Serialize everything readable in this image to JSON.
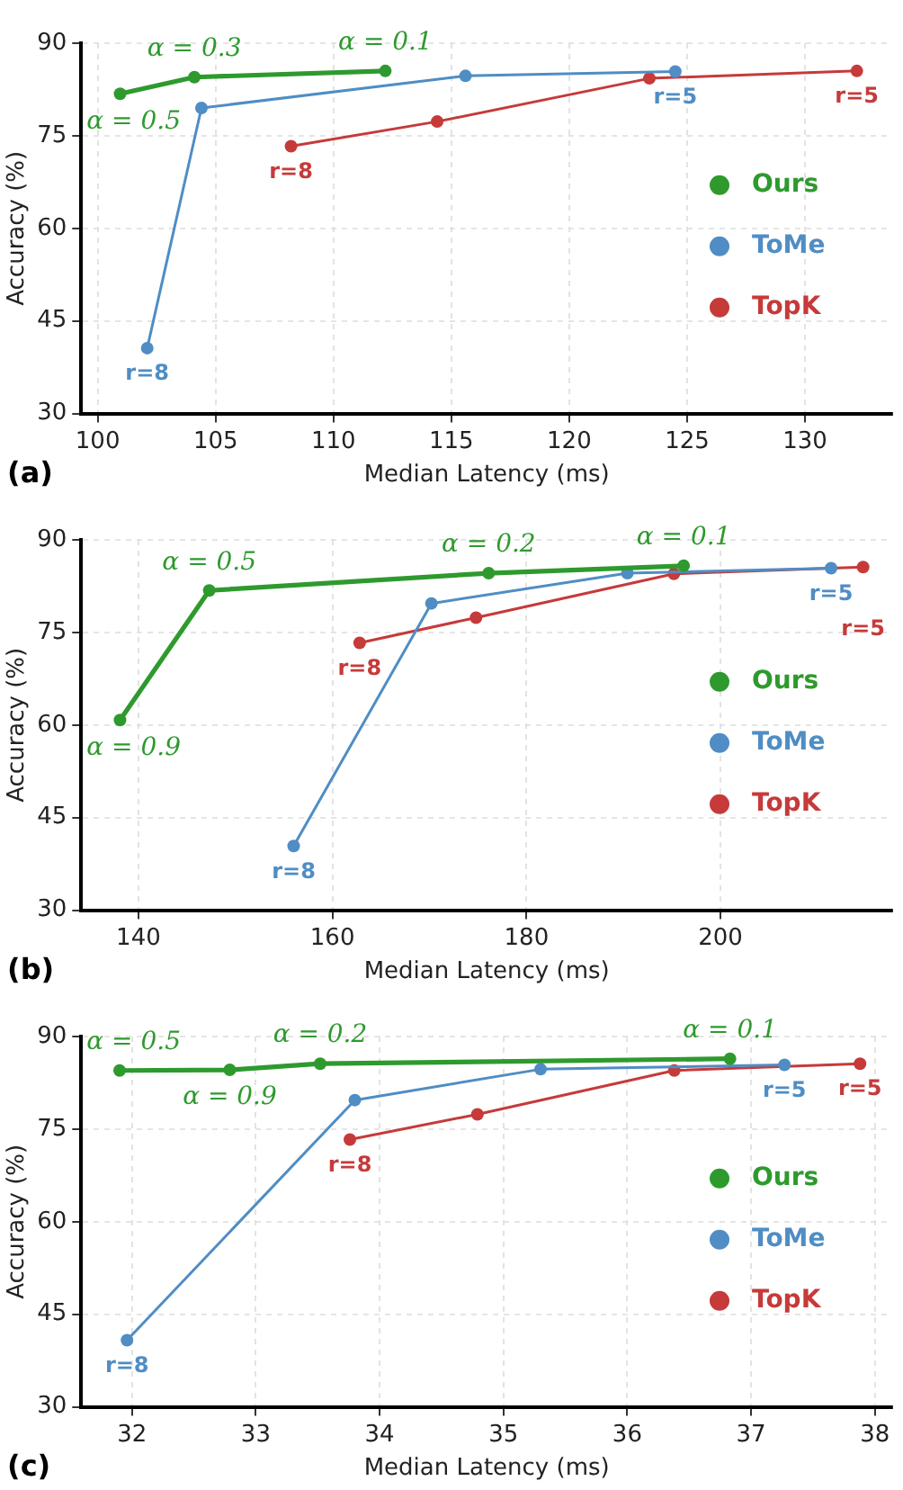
{
  "chart_data": [
    {
      "type": "line",
      "xlabel": "Median Latency (ms)",
      "ylabel": "Accuracy (%)",
      "xlim": [
        99.3,
        133.7
      ],
      "ylim": [
        30,
        90
      ],
      "xticks": [
        100,
        105,
        110,
        115,
        120,
        125,
        130
      ],
      "yticks": [
        30,
        45,
        60,
        75,
        90
      ],
      "grid": true,
      "legend": "right",
      "marker": "circle",
      "line_style": "solid",
      "series": [
        {
          "name": "Ours",
          "color": "#2e9a2e",
          "x": [
            100.95,
            104.1,
            112.2
          ],
          "values": [
            81.8,
            84.5,
            85.5
          ]
        },
        {
          "name": "ToMe",
          "color": "#4f8dc4",
          "x": [
            102.1,
            104.4,
            115.6,
            124.5
          ],
          "values": [
            40.6,
            79.5,
            84.7,
            85.4
          ]
        },
        {
          "name": "TopK",
          "color": "#c63a3a",
          "x": [
            108.2,
            114.4,
            123.4,
            132.2
          ],
          "values": [
            73.3,
            77.3,
            84.3,
            85.5
          ]
        }
      ],
      "annotations": [
        {
          "text": "α = 0.5",
          "x": 100.95,
          "y": 81.8
        },
        {
          "text": "α = 0.3",
          "x": 104.1,
          "y": 84.5
        },
        {
          "text": "α = 0.1",
          "x": 112.2,
          "y": 85.5
        },
        {
          "text": "r=8",
          "x": 102.1,
          "y": 40.6
        },
        {
          "text": "r=5",
          "x": 124.5,
          "y": 85.4
        },
        {
          "text": "r=8",
          "x": 108.2,
          "y": 73.3
        },
        {
          "text": "r=5",
          "x": 132.2,
          "y": 85.5
        },
        "(a)"
      ]
    },
    {
      "type": "line",
      "xlabel": "Median Latency (ms)",
      "ylabel": "Accuracy (%)",
      "xlim": [
        134.1,
        217.7
      ],
      "ylim": [
        30,
        90
      ],
      "xticks": [
        140,
        160,
        180,
        200
      ],
      "yticks": [
        30,
        45,
        60,
        75,
        90
      ],
      "grid": true,
      "legend": "right",
      "marker": "circle",
      "line_style": "solid",
      "series": [
        {
          "name": "Ours",
          "color": "#2e9a2e",
          "x": [
            138.1,
            147.3,
            176.1,
            196.2
          ],
          "values": [
            60.8,
            81.8,
            84.6,
            85.8
          ]
        },
        {
          "name": "ToMe",
          "color": "#4f8dc4",
          "x": [
            156.0,
            170.2,
            190.4,
            211.4
          ],
          "values": [
            40.4,
            79.7,
            84.6,
            85.4
          ]
        },
        {
          "name": "TopK",
          "color": "#c63a3a",
          "x": [
            162.8,
            174.8,
            195.2,
            214.7
          ],
          "values": [
            73.3,
            77.4,
            84.5,
            85.6
          ]
        }
      ],
      "annotations": [
        {
          "text": "α = 0.9",
          "x": 138.1,
          "y": 60.8
        },
        {
          "text": "α = 0.5",
          "x": 147.3,
          "y": 81.8
        },
        {
          "text": "α = 0.2",
          "x": 176.1,
          "y": 84.6
        },
        {
          "text": "α = 0.1",
          "x": 196.2,
          "y": 85.8
        },
        {
          "text": "r=8",
          "x": 156.0,
          "y": 40.4
        },
        {
          "text": "r=5",
          "x": 211.4,
          "y": 85.4
        },
        {
          "text": "r=8",
          "x": 162.8,
          "y": 73.3
        },
        {
          "text": "r=5",
          "x": 214.7,
          "y": 85.6
        },
        "(b)"
      ]
    },
    {
      "type": "line",
      "xlabel": "Median Latency (ms)",
      "ylabel": "Accuracy (%)",
      "xlim": [
        31.59,
        38.14
      ],
      "ylim": [
        30,
        90
      ],
      "xticks": [
        32,
        33,
        34,
        35,
        36,
        37,
        38
      ],
      "yticks": [
        30,
        45,
        60,
        75,
        90
      ],
      "grid": true,
      "legend": "right",
      "marker": "circle",
      "line_style": "solid",
      "series": [
        {
          "name": "Ours",
          "color": "#2e9a2e",
          "x": [
            31.9,
            32.79,
            33.52,
            36.83
          ],
          "values": [
            84.5,
            84.6,
            85.6,
            86.4
          ]
        },
        {
          "name": "ToMe",
          "color": "#4f8dc4",
          "x": [
            31.96,
            33.8,
            35.3,
            37.27
          ],
          "values": [
            40.8,
            79.7,
            84.7,
            85.4
          ]
        },
        {
          "name": "TopK",
          "color": "#c63a3a",
          "x": [
            33.76,
            34.79,
            36.38,
            37.88
          ],
          "values": [
            73.3,
            77.4,
            84.5,
            85.6
          ]
        }
      ],
      "annotations": [
        {
          "text": "α = 0.5",
          "x": 31.9,
          "y": 84.5
        },
        {
          "text": "α = 0.9",
          "x": 32.79,
          "y": 84.6
        },
        {
          "text": "α = 0.2",
          "x": 33.52,
          "y": 85.6
        },
        {
          "text": "α = 0.1",
          "x": 36.83,
          "y": 86.4
        },
        {
          "text": "r=8",
          "x": 31.96,
          "y": 40.8
        },
        {
          "text": "r=5",
          "x": 37.27,
          "y": 85.4
        },
        {
          "text": "r=8",
          "x": 33.76,
          "y": 73.3
        },
        {
          "text": "r=5",
          "x": 37.88,
          "y": 85.6
        },
        "(c)"
      ]
    }
  ]
}
